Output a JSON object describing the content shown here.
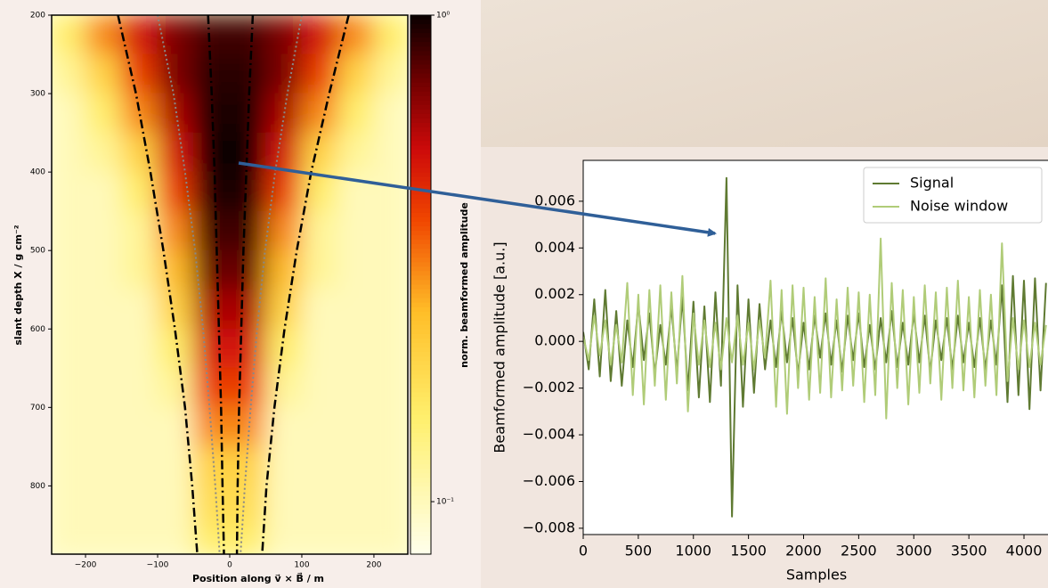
{
  "chart_data": [
    {
      "type": "heatmap",
      "xlabel": "Position along v⃗ × B⃗ / m",
      "ylabel": "slant depth X / g cm⁻²",
      "colorbar_label": "norm. beamformed amplitude",
      "colormap": "hot_r",
      "log_color": true,
      "clim": [
        0.078,
        1
      ],
      "cticks": [
        {
          "value": 1,
          "label": "10⁰"
        },
        {
          "value": 0.1,
          "label": "10⁻¹"
        }
      ],
      "xlim": [
        -247,
        247
      ],
      "ylim": [
        200,
        887
      ],
      "y_inverted": true,
      "xticks": [
        {
          "value": -200,
          "label": "−200"
        },
        {
          "value": -100,
          "label": "−100"
        },
        0,
        100,
        200
      ],
      "yticks": [
        200,
        300,
        400,
        500,
        600,
        700,
        800
      ],
      "xbins": [
        -250,
        -200,
        -150,
        -100,
        -50,
        0,
        50,
        100,
        150,
        200,
        250
      ],
      "ybins": [
        200,
        250,
        300,
        350,
        400,
        450,
        500,
        550,
        600,
        650,
        700,
        750,
        800,
        850,
        890
      ],
      "values": [
        [
          0.15,
          0.3,
          0.5,
          0.7,
          0.85,
          0.85,
          0.7,
          0.5,
          0.3,
          0.15
        ],
        [
          0.12,
          0.2,
          0.4,
          0.7,
          0.9,
          0.9,
          0.7,
          0.4,
          0.2,
          0.12
        ],
        [
          0.1,
          0.15,
          0.3,
          0.6,
          0.95,
          0.95,
          0.6,
          0.3,
          0.15,
          0.1
        ],
        [
          0.1,
          0.12,
          0.2,
          0.5,
          1,
          1,
          0.5,
          0.2,
          0.12,
          0.1
        ],
        [
          0.1,
          0.1,
          0.15,
          0.4,
          0.95,
          0.95,
          0.4,
          0.15,
          0.1,
          0.1
        ],
        [
          0.1,
          0.1,
          0.12,
          0.3,
          0.85,
          0.85,
          0.3,
          0.12,
          0.1,
          0.1
        ],
        [
          0.1,
          0.1,
          0.12,
          0.25,
          0.75,
          0.75,
          0.25,
          0.12,
          0.1,
          0.1
        ],
        [
          0.1,
          0.1,
          0.1,
          0.2,
          0.6,
          0.6,
          0.2,
          0.1,
          0.1,
          0.1
        ],
        [
          0.1,
          0.1,
          0.1,
          0.15,
          0.5,
          0.5,
          0.15,
          0.1,
          0.1,
          0.1
        ],
        [
          0.1,
          0.1,
          0.1,
          0.12,
          0.4,
          0.4,
          0.12,
          0.1,
          0.1,
          0.1
        ],
        [
          0.1,
          0.1,
          0.1,
          0.1,
          0.3,
          0.3,
          0.1,
          0.1,
          0.1,
          0.1
        ],
        [
          0.1,
          0.1,
          0.1,
          0.1,
          0.2,
          0.2,
          0.1,
          0.1,
          0.1,
          0.1
        ],
        [
          0.1,
          0.1,
          0.1,
          0.1,
          0.18,
          0.18,
          0.1,
          0.1,
          0.1,
          0.1
        ],
        [
          0.1,
          0.1,
          0.1,
          0.1,
          0.15,
          0.15,
          0.1,
          0.1,
          0.1,
          0.1
        ]
      ],
      "curves": [
        {
          "color": "#000000",
          "style": "dashdot",
          "x": [
            -155,
            -130,
            -110,
            -92,
            -76,
            -62,
            -52,
            -45
          ],
          "y": [
            200,
            300,
            400,
            500,
            600,
            700,
            800,
            887
          ]
        },
        {
          "color": "#000000",
          "style": "dashdot",
          "x": [
            165,
            138,
            113,
            93,
            76,
            62,
            51,
            45
          ],
          "y": [
            200,
            300,
            400,
            500,
            600,
            700,
            800,
            887
          ]
        },
        {
          "color": "#000000",
          "style": "dashdot",
          "x": [
            -30,
            -25,
            -21,
            -18,
            -15,
            -12,
            -10,
            -8
          ],
          "y": [
            200,
            300,
            400,
            500,
            600,
            700,
            800,
            887
          ]
        },
        {
          "color": "#000000",
          "style": "dashdot",
          "x": [
            32,
            27,
            23,
            19,
            16,
            13,
            11,
            10
          ],
          "y": [
            200,
            300,
            400,
            500,
            600,
            700,
            800,
            887
          ]
        },
        {
          "color": "#888888",
          "style": "dotted",
          "x": [
            -100,
            -78,
            -62,
            -48,
            -37,
            -28,
            -20,
            -14
          ],
          "y": [
            200,
            300,
            400,
            500,
            600,
            700,
            800,
            887
          ]
        },
        {
          "color": "#888888",
          "style": "dotted",
          "x": [
            100,
            80,
            63,
            49,
            38,
            29,
            21,
            15
          ],
          "y": [
            200,
            300,
            400,
            500,
            600,
            700,
            800,
            887
          ]
        }
      ]
    },
    {
      "type": "line",
      "xlabel": "Samples",
      "ylabel": "Beamformed amplitude [a.u.]",
      "xlim": [
        0,
        4218
      ],
      "ylim": [
        -0.00827,
        0.00775
      ],
      "xticks": [
        0,
        500,
        1000,
        1500,
        2000,
        2500,
        3000,
        3500,
        4000
      ],
      "yticks": [
        {
          "value": -0.008,
          "label": "−0.008"
        },
        {
          "value": -0.006,
          "label": "−0.006"
        },
        {
          "value": -0.004,
          "label": "−0.004"
        },
        {
          "value": -0.002,
          "label": "−0.002"
        },
        {
          "value": 0,
          "label": "0.000"
        },
        0.002,
        0.004,
        0.006
      ],
      "legend": "upper right",
      "x": [
        0,
        50,
        100,
        150,
        200,
        250,
        300,
        350,
        400,
        450,
        500,
        550,
        600,
        650,
        700,
        750,
        800,
        850,
        900,
        950,
        1000,
        1050,
        1100,
        1150,
        1200,
        1250,
        1300,
        1350,
        1400,
        1450,
        1500,
        1550,
        1600,
        1650,
        1700,
        1750,
        1800,
        1850,
        1900,
        1950,
        2000,
        2050,
        2100,
        2150,
        2200,
        2250,
        2300,
        2350,
        2400,
        2450,
        2500,
        2550,
        2600,
        2650,
        2700,
        2750,
        2800,
        2850,
        2900,
        2950,
        3000,
        3050,
        3100,
        3150,
        3200,
        3250,
        3300,
        3350,
        3400,
        3450,
        3500,
        3550,
        3600,
        3650,
        3700,
        3750,
        3800,
        3850,
        3900,
        3950,
        4000,
        4050,
        4100,
        4150,
        4200
      ],
      "series": [
        {
          "name": "Signal",
          "color": "#5f7a32",
          "values": [
            0.0004,
            -0.0012,
            0.0018,
            -0.0015,
            0.0022,
            -0.0017,
            0.0013,
            -0.0019,
            0.0009,
            -0.0011,
            0.0016,
            -0.0008,
            0.0012,
            -0.0014,
            0.0007,
            -0.001,
            0.0015,
            -0.0013,
            0.0019,
            -0.0021,
            0.0017,
            -0.0024,
            0.0015,
            -0.0026,
            0.0021,
            -0.0019,
            0.007,
            -0.0075,
            0.0024,
            -0.0028,
            0.0018,
            -0.0022,
            0.0016,
            -0.0012,
            0.0009,
            -0.0011,
            0.0013,
            -0.0009,
            0.001,
            -0.0014,
            0.0008,
            -0.0012,
            0.0011,
            -0.0007,
            0.0012,
            -0.001,
            0.0009,
            -0.0013,
            0.0011,
            -0.0008,
            0.0012,
            -0.0011,
            0.0007,
            -0.0012,
            0.001,
            -0.0009,
            0.0013,
            -0.0011,
            0.0008,
            -0.001,
            0.0012,
            -0.0009,
            0.0011,
            -0.0013,
            0.0009,
            -0.0008,
            0.001,
            -0.0012,
            0.0011,
            -0.0009,
            0.0008,
            -0.0011,
            0.001,
            -0.0012,
            0.0009,
            -0.001,
            0.0024,
            -0.0026,
            0.0028,
            -0.0023,
            0.0026,
            -0.0029,
            0.0027,
            -0.0021,
            0.0025
          ]
        },
        {
          "name": "Noise window",
          "color": "#b0cc78",
          "values": [
            0.0002,
            -0.0008,
            0.0011,
            -0.0006,
            0.0009,
            -0.001,
            0.0007,
            -0.0009,
            0.0025,
            -0.0023,
            0.002,
            -0.0027,
            0.0022,
            -0.0019,
            0.0024,
            -0.0025,
            0.0021,
            -0.0018,
            0.0028,
            -0.003,
            0.0012,
            -0.001,
            0.0009,
            -0.0011,
            0.0008,
            -0.0012,
            0.001,
            -0.0009,
            0.0011,
            -0.001,
            0.0008,
            -0.0012,
            0.0009,
            -0.0007,
            0.0026,
            -0.0028,
            0.0022,
            -0.0031,
            0.0024,
            -0.002,
            0.0023,
            -0.0025,
            0.0019,
            -0.0022,
            0.0027,
            -0.0024,
            0.0018,
            -0.0021,
            0.0023,
            -0.0019,
            0.0021,
            -0.0026,
            0.002,
            -0.0023,
            0.0044,
            -0.0033,
            0.0025,
            -0.002,
            0.0022,
            -0.0027,
            0.0019,
            -0.0022,
            0.0024,
            -0.0018,
            0.0021,
            -0.0025,
            0.0023,
            -0.002,
            0.0026,
            -0.0021,
            0.0019,
            -0.0024,
            0.0022,
            -0.0019,
            0.002,
            -0.0023,
            0.0042,
            -0.0017,
            0.001,
            -0.0012,
            0.0009,
            -0.0011,
            0.0008,
            -0.001,
            0.0007
          ]
        }
      ]
    }
  ]
}
